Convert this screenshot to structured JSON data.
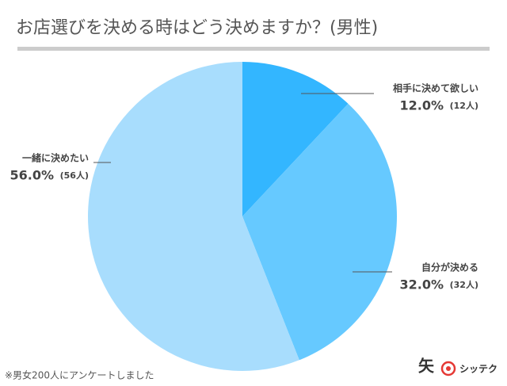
{
  "chart_data": {
    "type": "pie",
    "title": "お店選びを決める時はどう決めますか？(男性)",
    "categories": [
      "相手に決めて欲しい",
      "自分が決める",
      "一緒に決めたい"
    ],
    "values": [
      12,
      32,
      56
    ],
    "value_labels": [
      "12.0%",
      "32.0%",
      "56.0%"
    ],
    "count_labels": [
      "(12人)",
      "(32人)",
      "(56人)"
    ],
    "colors": [
      "#33b6ff",
      "#66c9ff",
      "#a8ddfd"
    ],
    "note": "※男女200人にアンケートしました",
    "logo": "シッテク"
  }
}
